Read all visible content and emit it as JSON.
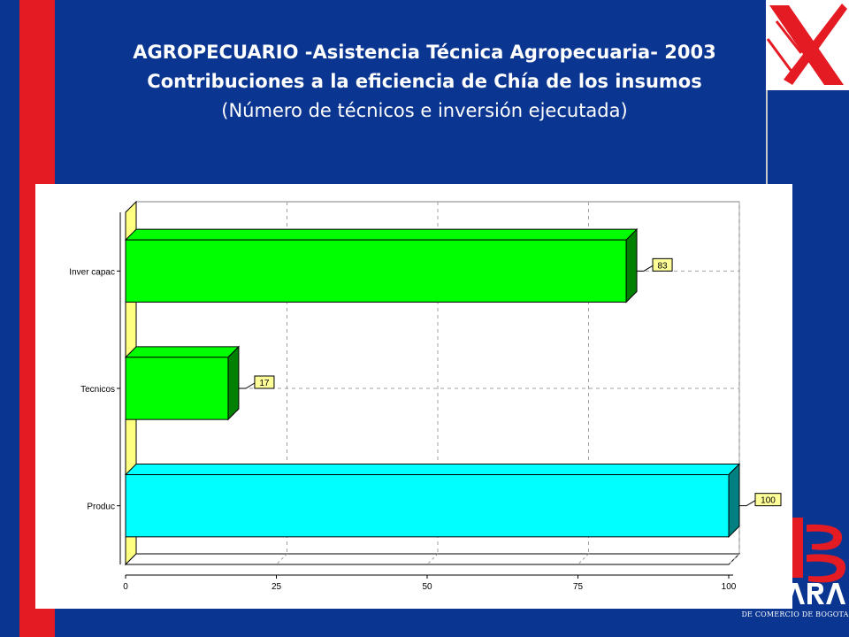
{
  "title_line1": "AGROPECUARIO -Asistencia Técnica Agropecuaria- 2003",
  "title_line2": "Contribuciones a la eficiencia de Chía de los insumos",
  "title_line3": "(Número de técnicos e inversión ejecutada)",
  "brand_text": "DE COMERCIO DE BOGOTA",
  "colors": {
    "background": "#0a3591",
    "accent_red": "#e51b24",
    "bar_green": "#00ff00",
    "bar_cyan": "#00ffff",
    "wall_yellow": "#ffff80",
    "label_box": "#ffff99"
  },
  "chart_data": {
    "type": "bar",
    "orientation": "horizontal",
    "categories": [
      "Inver capac",
      "Tecnicos",
      "Produc"
    ],
    "values": [
      83,
      17,
      100
    ],
    "data_labels": [
      "83",
      "17",
      "100"
    ],
    "bar_colors": [
      "#00ff00",
      "#00ff00",
      "#00ffff"
    ],
    "xticks": [
      "0",
      "25",
      "50",
      "75",
      "100"
    ],
    "xlim": [
      0,
      100
    ],
    "grid": true,
    "title": "",
    "xlabel": "",
    "ylabel": ""
  }
}
